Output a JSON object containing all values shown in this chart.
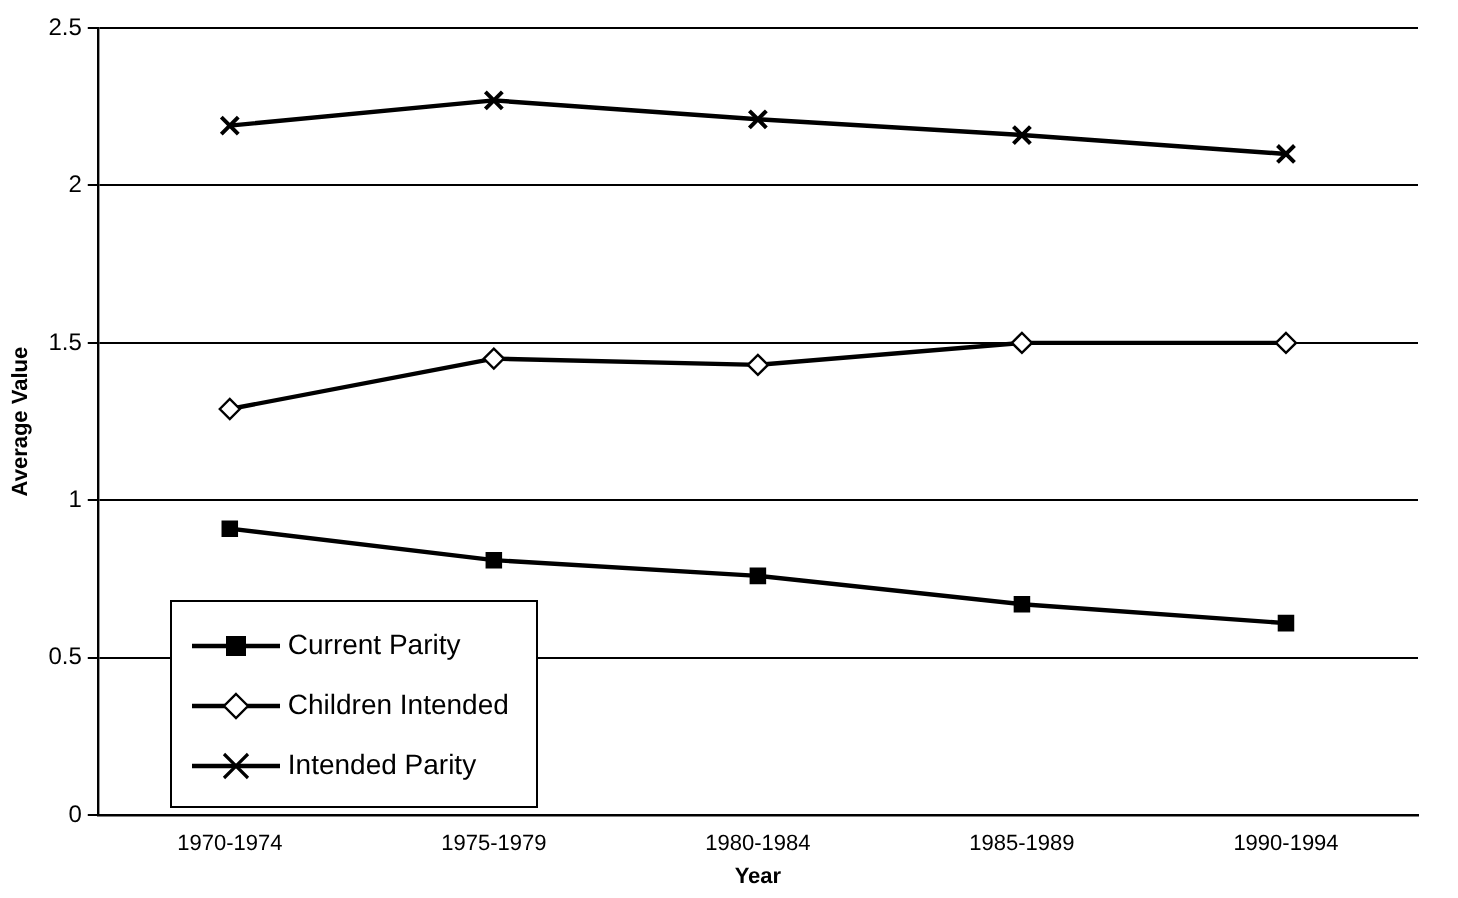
{
  "chart_data": {
    "type": "line",
    "xlabel": "Year",
    "ylabel": "Average Value",
    "categories": [
      "1970-1974",
      "1975-1979",
      "1980-1984",
      "1985-1989",
      "1990-1994"
    ],
    "series": [
      {
        "name": "Current Parity",
        "color": "#000000",
        "marker": "square",
        "values": [
          0.91,
          0.81,
          0.76,
          0.67,
          0.61
        ]
      },
      {
        "name": "Children Intended",
        "color": "#000000",
        "marker": "diamond",
        "values": [
          1.29,
          1.45,
          1.43,
          1.5,
          1.5
        ]
      },
      {
        "name": "Intended Parity",
        "color": "#000000",
        "marker": "cross",
        "values": [
          2.19,
          2.27,
          2.21,
          2.16,
          2.1
        ]
      }
    ],
    "ylim": [
      0,
      2.5
    ],
    "yticks": [
      0,
      0.5,
      1,
      1.5,
      2,
      2.5
    ],
    "grid": "y",
    "legend": "bottom left"
  }
}
